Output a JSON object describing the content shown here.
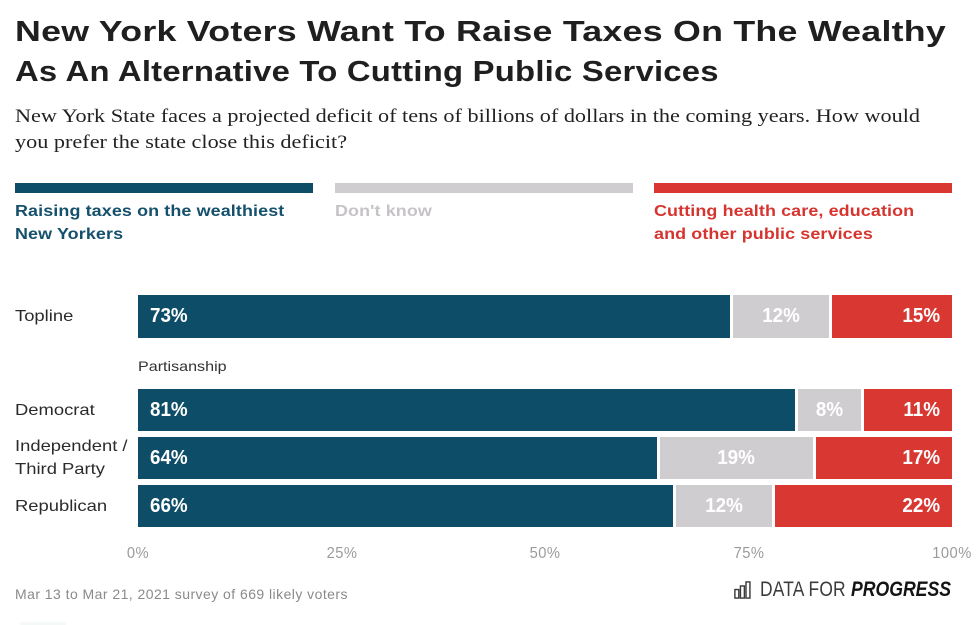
{
  "colors": {
    "blue": "#0e4d68",
    "gray": "#d0cdd1",
    "red": "#d93832",
    "blue_text": "#15506c",
    "gray_text": "#c6c3c7",
    "red_text": "#d6352f"
  },
  "header": {
    "title_lines": [
      "New York Voters Want To Raise Taxes On The Wealthy",
      "As An Alternative To Cutting Public Services"
    ],
    "subtitle_lines": [
      "New York State faces a projected deficit of tens of billions of dollars in the coming years. How would",
      "you prefer the state close this deficit?"
    ]
  },
  "legend": [
    {
      "lines": [
        "Raising taxes on the wealthiest",
        "New Yorkers"
      ],
      "color": "#0e4d68",
      "text_color": "#15506c"
    },
    {
      "lines": [
        "Don't know"
      ],
      "color": "#d0cdd1",
      "text_color": "#c6c3c7"
    },
    {
      "lines": [
        "Cutting health care, education",
        "and other public services"
      ],
      "color": "#d93832",
      "text_color": "#d6352f"
    }
  ],
  "chart_data": {
    "type": "bar",
    "orientation": "horizontal-stacked",
    "title": "New York Voters Want To Raise Taxes On The Wealthy As An Alternative To Cutting Public Services",
    "series_names": [
      "Raising taxes on the wealthiest New Yorkers",
      "Don't know",
      "Cutting health care, education and other public services"
    ],
    "series_colors": [
      "#0e4d68",
      "#d0cdd1",
      "#d93832"
    ],
    "group_label": "Partisanship",
    "rows": [
      {
        "label_lines": [
          "Topline"
        ],
        "values": [
          73,
          12,
          15
        ],
        "labels": [
          "73%",
          "12%",
          "15%"
        ],
        "group_before": false
      },
      {
        "label_lines": [
          "Democrat"
        ],
        "values": [
          81,
          8,
          11
        ],
        "labels": [
          "81%",
          "8%",
          "11%"
        ],
        "group_before": true
      },
      {
        "label_lines": [
          "Independent /",
          "Third Party"
        ],
        "values": [
          64,
          19,
          17
        ],
        "labels": [
          "64%",
          "19%",
          "17%"
        ],
        "group_before": false
      },
      {
        "label_lines": [
          "Republican"
        ],
        "values": [
          66,
          12,
          22
        ],
        "labels": [
          "66%",
          "12%",
          "22%"
        ],
        "group_before": false
      }
    ],
    "x_ticks": [
      "0%",
      "25%",
      "50%",
      "75%",
      "100%"
    ],
    "x_tick_values": [
      0,
      25,
      50,
      75,
      100
    ],
    "xlim": [
      0,
      100
    ]
  },
  "footer": {
    "source": "Mar 13 to Mar 21, 2021 survey of 669 likely voters",
    "logo_prefix": "DATA FOR",
    "logo_suffix": "PROGRESS"
  }
}
